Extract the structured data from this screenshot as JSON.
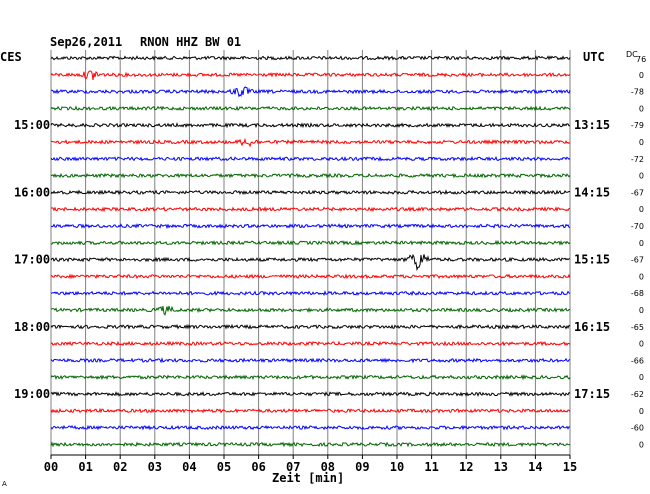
{
  "header": {
    "date": "Sep26,2011",
    "station": "RNON HHZ BW 01",
    "left_zone": "CES",
    "right_zone": "UTC",
    "dc_header": "DC",
    "dc_header_value": "76",
    "xlabel": "Zeit [min]",
    "footer_mark": "A"
  },
  "colors": {
    "trace_cycle": [
      "#000000",
      "#ff0000",
      "#0000ff",
      "#006400"
    ],
    "grid": "#808080",
    "background": "#ffffff"
  },
  "chart_data": {
    "type": "line",
    "title": "Sep26,2011  RNON HHZ BW 01",
    "xlabel": "Zeit [min]",
    "xlim": [
      0,
      15
    ],
    "x_ticks": [
      "00",
      "01",
      "02",
      "03",
      "04",
      "05",
      "06",
      "07",
      "08",
      "09",
      "10",
      "11",
      "12",
      "13",
      "14",
      "15"
    ],
    "left_time_labels": [
      "15:00",
      "16:00",
      "17:00",
      "18:00",
      "19:00"
    ],
    "right_time_labels": [
      "13:15",
      "14:15",
      "15:15",
      "16:15",
      "17:15"
    ],
    "rows_per_hour": 4,
    "trace_count": 24,
    "dc_offsets": [
      "",
      "0",
      "-78",
      "0",
      "-79",
      "0",
      "-72",
      "0",
      "-67",
      "0",
      "-70",
      "0",
      "-67",
      "0",
      "-68",
      "0",
      "-65",
      "0",
      "-66",
      "0",
      "-62",
      "0",
      "-60",
      "0"
    ],
    "events": [
      {
        "trace": 1,
        "minute": 1.2,
        "amplitude": "medium"
      },
      {
        "trace": 2,
        "minute": 5.5,
        "amplitude": "medium"
      },
      {
        "trace": 5,
        "minute": 5.7,
        "amplitude": "small"
      },
      {
        "trace": 12,
        "minute": 10.6,
        "amplitude": "large"
      },
      {
        "trace": 15,
        "minute": 3.3,
        "amplitude": "small"
      }
    ]
  }
}
